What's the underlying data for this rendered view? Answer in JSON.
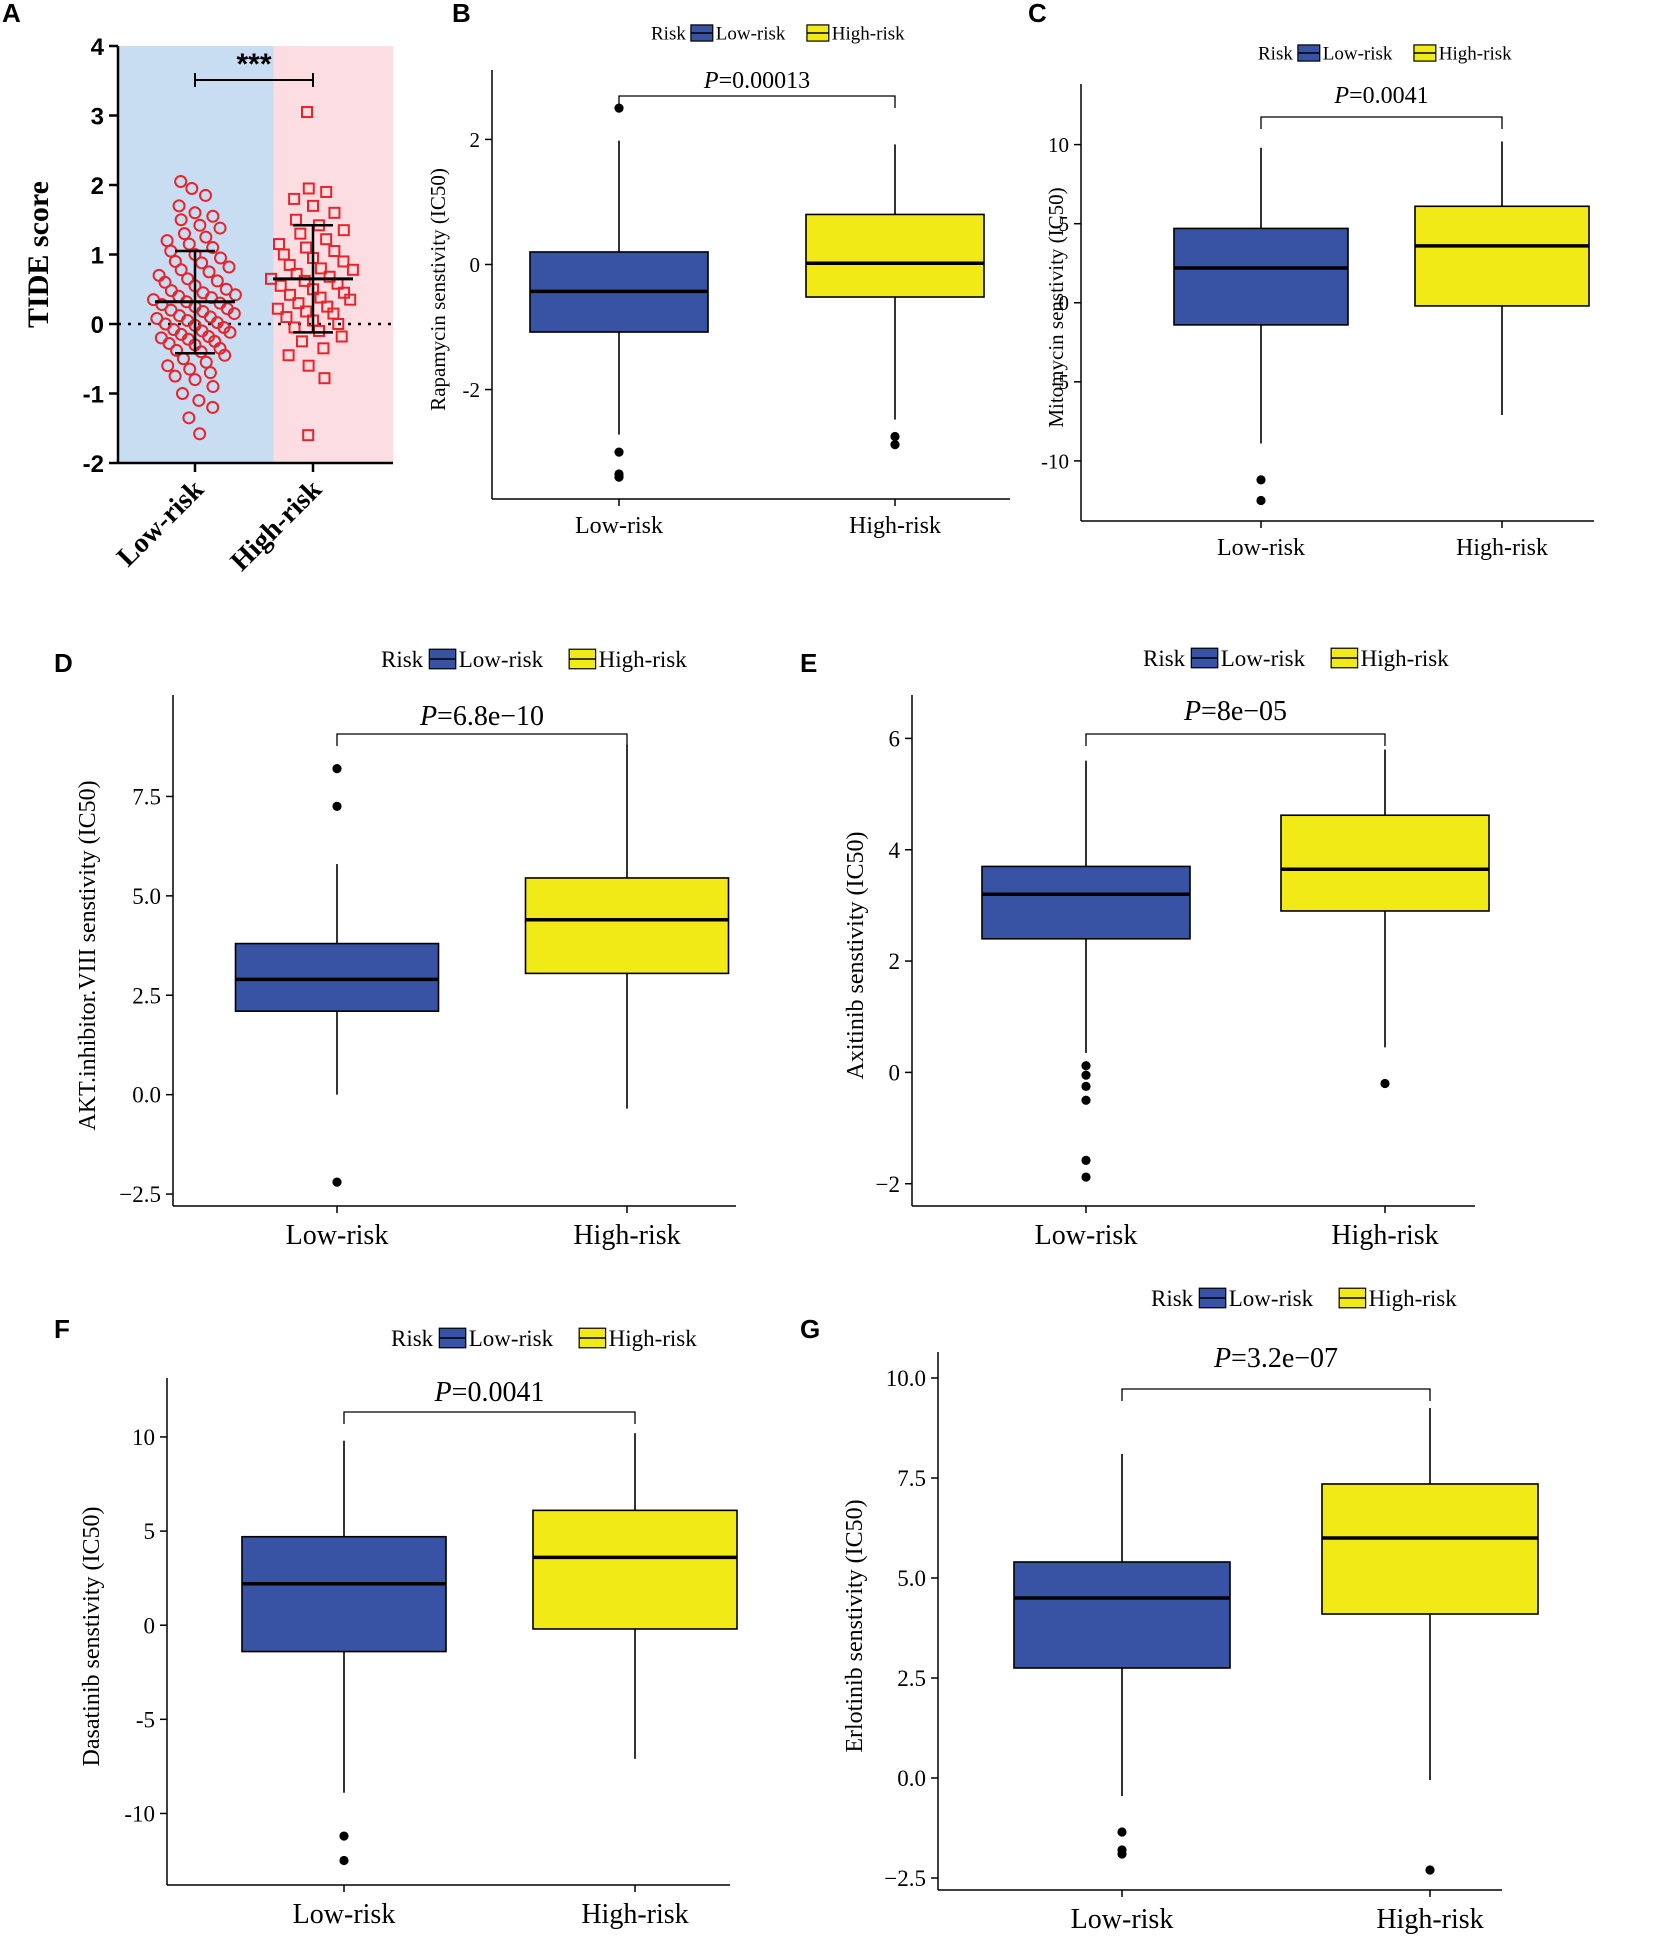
{
  "figure_labels": [
    "A",
    "B",
    "C",
    "D",
    "E",
    "F",
    "G"
  ],
  "colors": {
    "low_risk": "#3953A4",
    "high_risk": "#F2EA16",
    "scatter": "#E8232B",
    "bg_low": "#C9DDF2",
    "bg_high": "#FBDDE2"
  },
  "chart_data": [
    {
      "panel": "A",
      "type": "scatter",
      "title": "",
      "ylabel": "TIDE score",
      "categories": [
        "Low-risk",
        "High-risk"
      ],
      "yticks": [
        4,
        3,
        2,
        1,
        0,
        -1,
        -2
      ],
      "ylim": [
        -2,
        4
      ],
      "significance": "***",
      "means": [
        0.32,
        0.65
      ],
      "sd_ranges": [
        [
          -0.42,
          1.05
        ],
        [
          -0.12,
          1.42
        ]
      ],
      "series": [
        {
          "name": "Low-risk",
          "values": [
            2.05,
            1.95,
            1.85,
            1.7,
            1.6,
            1.55,
            1.5,
            1.42,
            1.38,
            1.3,
            1.25,
            1.2,
            1.15,
            1.1,
            1.05,
            1.0,
            0.95,
            0.9,
            0.88,
            0.82,
            0.78,
            0.75,
            0.7,
            0.65,
            0.62,
            0.6,
            0.55,
            0.5,
            0.48,
            0.45,
            0.42,
            0.4,
            0.38,
            0.35,
            0.32,
            0.3,
            0.28,
            0.25,
            0.22,
            0.2,
            0.18,
            0.15,
            0.12,
            0.1,
            0.08,
            0.05,
            0.02,
            0.0,
            -0.02,
            -0.05,
            -0.08,
            -0.1,
            -0.12,
            -0.15,
            -0.18,
            -0.2,
            -0.22,
            -0.25,
            -0.28,
            -0.3,
            -0.35,
            -0.38,
            -0.4,
            -0.45,
            -0.5,
            -0.55,
            -0.6,
            -0.65,
            -0.7,
            -0.75,
            -0.8,
            -0.9,
            -1.0,
            -1.1,
            -1.2,
            -1.35,
            -1.58
          ]
        },
        {
          "name": "High-risk",
          "values": [
            3.05,
            1.95,
            1.9,
            1.8,
            1.7,
            1.6,
            1.5,
            1.42,
            1.35,
            1.3,
            1.22,
            1.15,
            1.1,
            1.05,
            1.0,
            0.95,
            0.9,
            0.85,
            0.8,
            0.78,
            0.72,
            0.68,
            0.65,
            0.62,
            0.58,
            0.55,
            0.5,
            0.45,
            0.42,
            0.38,
            0.35,
            0.3,
            0.25,
            0.22,
            0.18,
            0.15,
            0.1,
            0.05,
            0.0,
            -0.05,
            -0.1,
            -0.18,
            -0.25,
            -0.35,
            -0.45,
            -0.6,
            -0.78,
            -1.6
          ]
        }
      ]
    },
    {
      "panel": "B",
      "type": "box",
      "ylabel": "Rapamycin senstivity (IC50)",
      "legend_title": "Risk",
      "legend": [
        "Low-risk",
        "High-risk"
      ],
      "categories": [
        "Low-risk",
        "High-risk"
      ],
      "pvalue_italic": "P",
      "pvalue_text": "=0.00013",
      "yticks": [
        2,
        0,
        -2
      ],
      "ylim": [
        -3.75,
        2.95
      ],
      "boxes": [
        {
          "group": "Low-risk",
          "q1": -1.08,
          "median": -0.43,
          "q3": 0.2,
          "lower": -2.72,
          "upper": 1.98,
          "outliers": [
            2.5,
            -3.0,
            -3.35,
            -3.4
          ]
        },
        {
          "group": "High-risk",
          "q1": -0.52,
          "median": 0.02,
          "q3": 0.8,
          "lower": -2.48,
          "upper": 1.92,
          "outliers": [
            -2.75,
            -2.88
          ]
        }
      ]
    },
    {
      "panel": "C",
      "type": "box",
      "ylabel": "Mitomycin senstivity (IC50)",
      "legend_title": "Risk",
      "legend": [
        "Low-risk",
        "High-risk"
      ],
      "categories": [
        "Low-risk",
        "High-risk"
      ],
      "pvalue_italic": "P",
      "pvalue_text": "=0.0041",
      "yticks": [
        10,
        5,
        0,
        -5,
        -10
      ],
      "ylim": [
        -13.8,
        13.2
      ],
      "boxes": [
        {
          "group": "Low-risk",
          "q1": -1.4,
          "median": 2.2,
          "q3": 4.7,
          "lower": -8.9,
          "upper": 9.8,
          "outliers": [
            -11.2,
            -12.5
          ]
        },
        {
          "group": "High-risk",
          "q1": -0.2,
          "median": 3.6,
          "q3": 6.1,
          "lower": -7.1,
          "upper": 10.2,
          "outliers": []
        }
      ]
    },
    {
      "panel": "D",
      "type": "box",
      "ylabel": "AKT.inhibitor.VIII senstivity (IC50)",
      "legend_title": "Risk",
      "legend": [
        "Low-risk",
        "High-risk"
      ],
      "categories": [
        "Low-risk",
        "High-risk"
      ],
      "pvalue_italic": "P",
      "pvalue_text": "=6.8e−10",
      "yticks": [
        7.5,
        5.0,
        2.5,
        0.0,
        -2.5
      ],
      "yticklabels": [
        "7.5",
        "5.0",
        "2.5",
        "0.0",
        "−2.5"
      ],
      "ylim": [
        -2.8,
        9.8
      ],
      "boxes": [
        {
          "group": "Low-risk",
          "q1": 2.1,
          "median": 2.9,
          "q3": 3.8,
          "lower": 0.0,
          "upper": 5.8,
          "outliers": [
            8.2,
            7.25,
            -2.2
          ]
        },
        {
          "group": "High-risk",
          "q1": 3.05,
          "median": 4.4,
          "q3": 5.45,
          "lower": -0.35,
          "upper": 8.8,
          "outliers": []
        }
      ]
    },
    {
      "panel": "E",
      "type": "box",
      "ylabel": "Axitinib senstivity (IC50)",
      "legend_title": "Risk",
      "legend": [
        "Low-risk",
        "High-risk"
      ],
      "categories": [
        "Low-risk",
        "High-risk"
      ],
      "pvalue_italic": "P",
      "pvalue_text": "=8e−05",
      "yticks": [
        6,
        4,
        2,
        0,
        -2
      ],
      "yticklabels": [
        "6",
        "4",
        "2",
        "0",
        "−2"
      ],
      "ylim": [
        -2.4,
        6.6
      ],
      "boxes": [
        {
          "group": "Low-risk",
          "q1": 2.4,
          "median": 3.2,
          "q3": 3.7,
          "lower": 0.35,
          "upper": 5.6,
          "outliers": [
            0.12,
            -0.05,
            -0.25,
            -0.5,
            -1.58,
            -1.88
          ]
        },
        {
          "group": "High-risk",
          "q1": 2.9,
          "median": 3.65,
          "q3": 4.62,
          "lower": 0.45,
          "upper": 5.8,
          "outliers": [
            -0.2
          ]
        }
      ]
    },
    {
      "panel": "F",
      "type": "box",
      "ylabel": "Dasatinib senstivity (IC50)",
      "legend_title": "Risk",
      "legend": [
        "Low-risk",
        "High-risk"
      ],
      "categories": [
        "Low-risk",
        "High-risk"
      ],
      "pvalue_italic": "P",
      "pvalue_text": "=0.0041",
      "yticks": [
        10,
        5,
        0,
        -5,
        -10
      ],
      "ylim": [
        -13.8,
        12.6
      ],
      "boxes": [
        {
          "group": "Low-risk",
          "q1": -1.4,
          "median": 2.2,
          "q3": 4.7,
          "lower": -8.9,
          "upper": 9.8,
          "outliers": [
            -11.2,
            -12.5
          ]
        },
        {
          "group": "High-risk",
          "q1": -0.2,
          "median": 3.6,
          "q3": 6.1,
          "lower": -7.1,
          "upper": 10.2,
          "outliers": []
        }
      ]
    },
    {
      "panel": "G",
      "type": "box",
      "ylabel": "Erlotinib senstivity (IC50)",
      "legend_title": "Risk",
      "legend": [
        "Low-risk",
        "High-risk"
      ],
      "categories": [
        "Low-risk",
        "High-risk"
      ],
      "pvalue_italic": "P",
      "pvalue_text": "=3.2e−07",
      "yticks": [
        10.0,
        7.5,
        5.0,
        2.5,
        0.0,
        -2.5
      ],
      "yticklabels": [
        "10.0",
        "7.5",
        "5.0",
        "2.5",
        "0.0",
        "−2.5"
      ],
      "ylim": [
        -2.8,
        10.4
      ],
      "boxes": [
        {
          "group": "Low-risk",
          "q1": 2.75,
          "median": 4.5,
          "q3": 5.4,
          "lower": -0.45,
          "upper": 8.1,
          "outliers": [
            -1.35,
            -1.8,
            -1.9
          ]
        },
        {
          "group": "High-risk",
          "q1": 4.1,
          "median": 6.0,
          "q3": 7.35,
          "lower": -0.05,
          "upper": 9.25,
          "outliers": [
            -2.3
          ]
        }
      ]
    }
  ]
}
